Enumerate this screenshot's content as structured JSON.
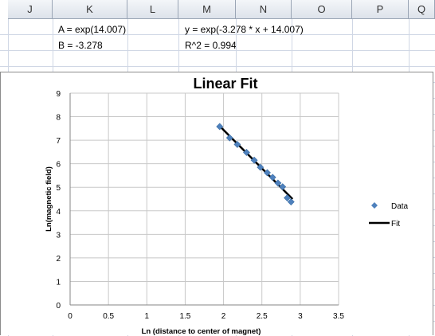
{
  "spreadsheet": {
    "columns": [
      "J",
      "K",
      "L",
      "M",
      "N",
      "O",
      "P",
      "Q"
    ],
    "cells": {
      "k1": "A = exp(14.007)",
      "m1": "y = exp(-3.278 * x + 14.007)",
      "k2": "B = -3.278",
      "m2": "R^2 = 0.994"
    }
  },
  "chart_data": {
    "type": "scatter",
    "title": "Linear Fit",
    "xlabel": "Ln (distance to center of magnet)",
    "ylabel": "Ln(magnetic field)",
    "xlim": [
      0,
      3.5
    ],
    "ylim": [
      0,
      9
    ],
    "x_ticks": [
      "0",
      "0.5",
      "1",
      "1.5",
      "2",
      "2.5",
      "3",
      "3.5"
    ],
    "y_ticks": [
      "0",
      "1",
      "2",
      "3",
      "4",
      "5",
      "6",
      "7",
      "8",
      "9"
    ],
    "grid": true,
    "legend_position": "right",
    "series": [
      {
        "name": "Data",
        "kind": "markers",
        "color": "#4f81bd",
        "x": [
          1.95,
          2.08,
          2.18,
          2.3,
          2.4,
          2.48,
          2.57,
          2.64,
          2.71,
          2.77,
          2.83,
          2.88
        ],
        "y": [
          7.58,
          7.1,
          6.82,
          6.48,
          6.15,
          5.85,
          5.62,
          5.42,
          5.18,
          5.02,
          4.55,
          4.38
        ]
      },
      {
        "name": "Fit",
        "kind": "line",
        "color": "#000000",
        "x": [
          1.95,
          2.9
        ],
        "y": [
          7.6,
          4.5
        ]
      }
    ]
  }
}
